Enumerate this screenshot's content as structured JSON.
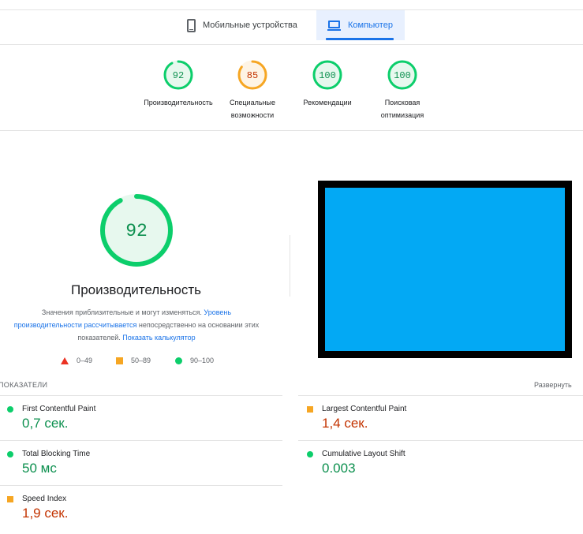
{
  "tabs": {
    "mobile": {
      "label": "Мобильные устройства",
      "icon": "phone-icon"
    },
    "desktop": {
      "label": "Компьютер",
      "icon": "laptop-icon",
      "selected": true
    }
  },
  "summary": [
    {
      "score": "92",
      "value": 92,
      "label_line1": "Производительность",
      "label_line2": "",
      "color": "#0cce6b"
    },
    {
      "score": "85",
      "value": 85,
      "label_line1": "Специальные",
      "label_line2": "возможности",
      "color": "#f6a623"
    },
    {
      "score": "100",
      "value": 100,
      "label_line1": "Рекомендации",
      "label_line2": "",
      "color": "#0cce6b"
    },
    {
      "score": "100",
      "value": 100,
      "label_line1": "Поисковая",
      "label_line2": "оптимизация",
      "color": "#0cce6b"
    }
  ],
  "performance": {
    "score": "92",
    "value": 92,
    "title": "Производительность",
    "desc_part1": "Значения приблизительные и могут изменяться. ",
    "desc_link1": "Уровень производительности рассчитывается",
    "desc_part2": " непосредственно на основании этих показателей. ",
    "desc_link2": "Показать калькулятор"
  },
  "legend": {
    "poor": "0–49",
    "average": "50–89",
    "good": "90–100"
  },
  "colors": {
    "good": "#0cce6b",
    "average": "#f6a623",
    "poor": "#eb3223",
    "accent": "#1a73e8",
    "screenshot_fill": "#03a9f4"
  },
  "metrics": {
    "header": "ПОКАЗАТЕЛИ",
    "expand_label": "Развернуть",
    "items": [
      {
        "name": "First Contentful Paint",
        "value": "0,7 сек.",
        "status": "good"
      },
      {
        "name": "Largest Contentful Paint",
        "value": "1,4 сек.",
        "status": "average"
      },
      {
        "name": "Total Blocking Time",
        "value": "50 мс",
        "status": "good"
      },
      {
        "name": "Cumulative Layout Shift",
        "value": "0.003",
        "status": "good"
      },
      {
        "name": "Speed Index",
        "value": "1,9 сек.",
        "status": "average"
      }
    ]
  }
}
